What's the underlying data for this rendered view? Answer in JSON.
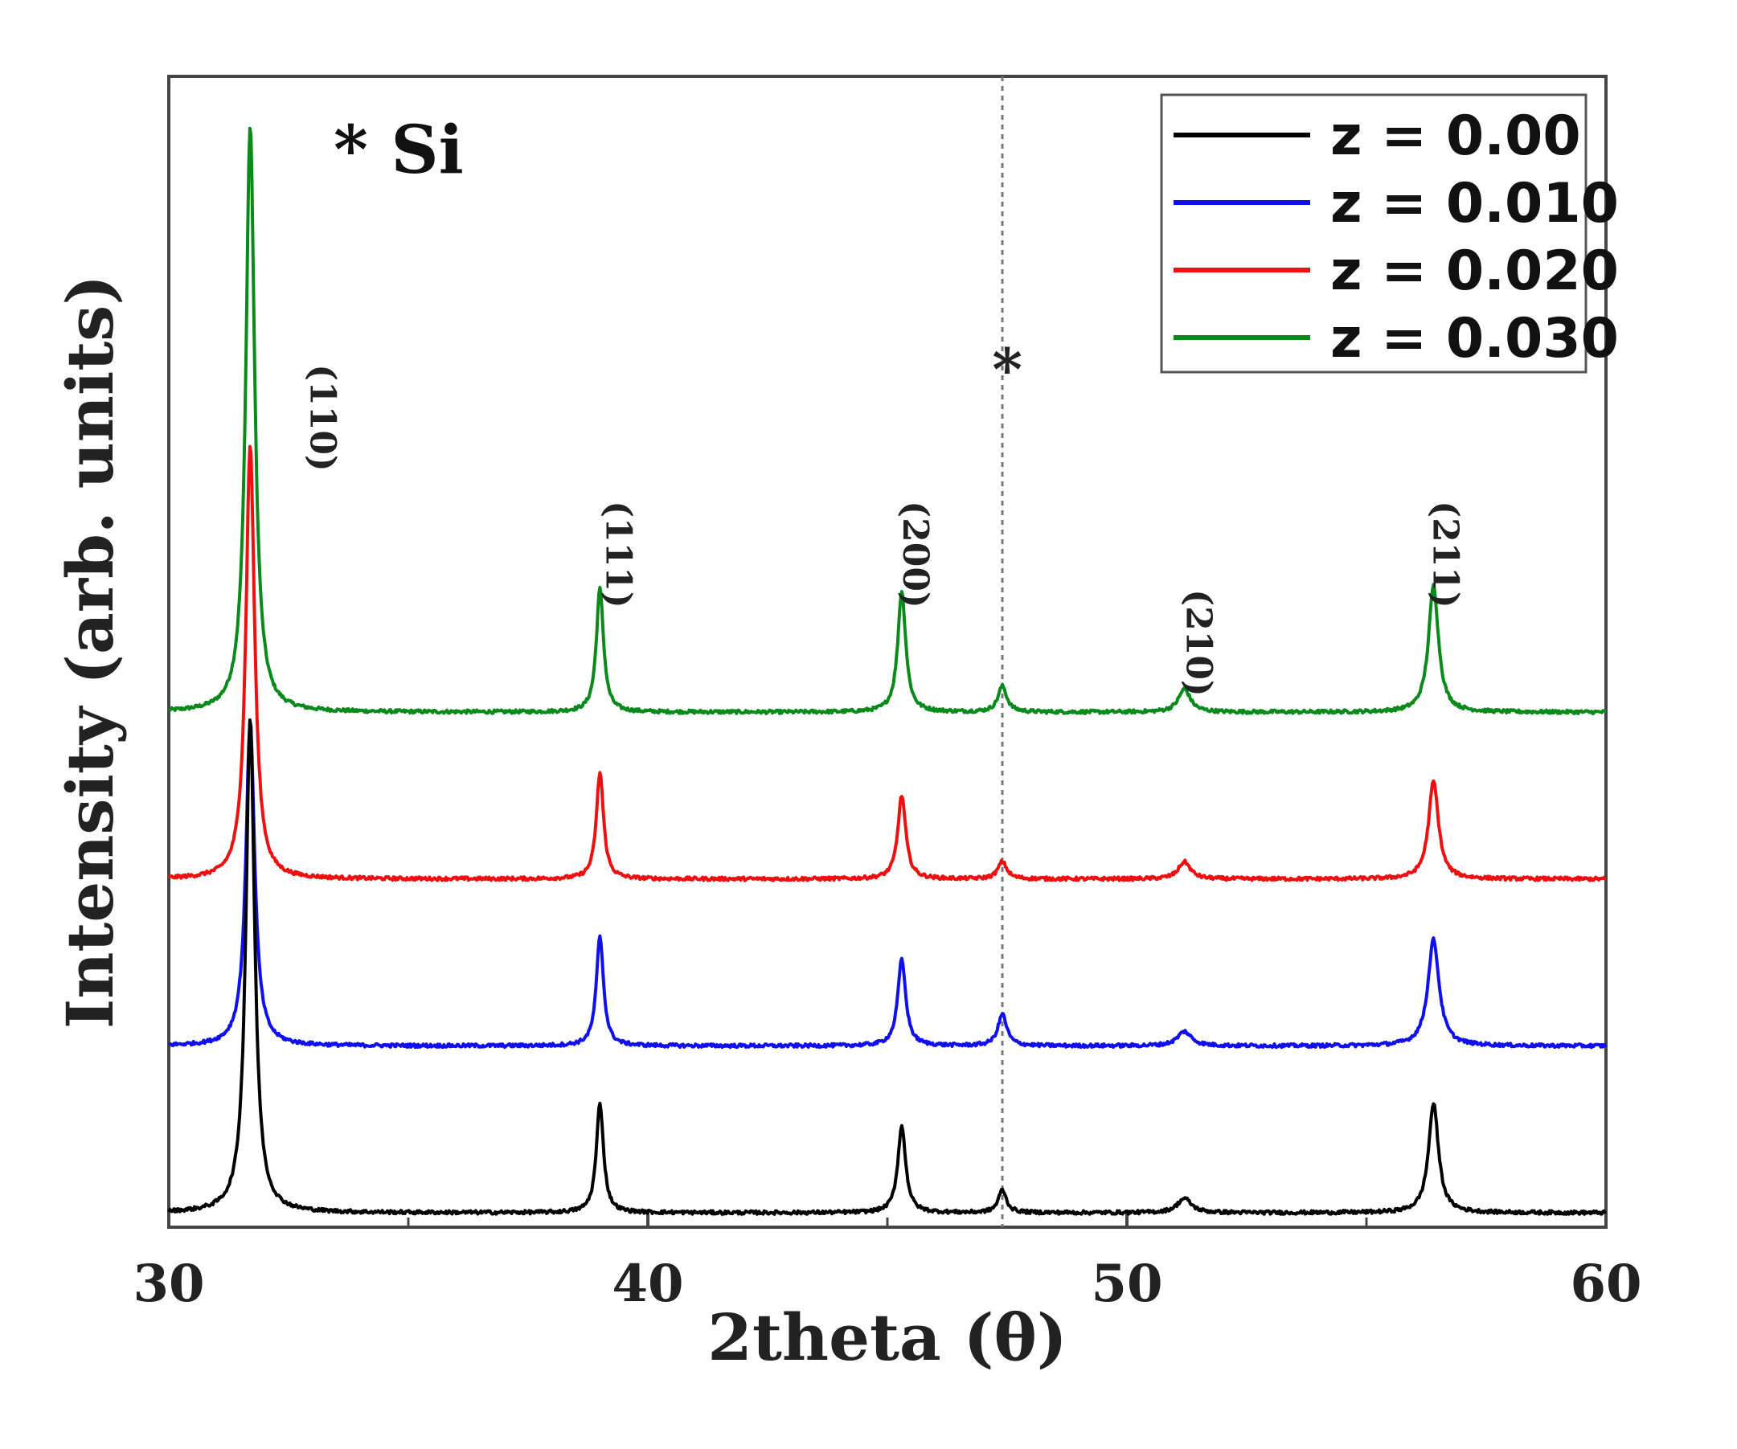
{
  "chart_data": {
    "type": "line",
    "title": "",
    "xlabel": "2theta (θ)",
    "ylabel": "Intensity (arb. units)",
    "xlim": [
      30,
      60
    ],
    "xticks": [
      "30",
      "40",
      "50",
      "60"
    ],
    "annotation": "* Si",
    "si_marker": {
      "label": "*",
      "x": 47.4
    },
    "peak_labels": [
      {
        "label": "(110)",
        "x": 31.7
      },
      {
        "label": "(111)",
        "x": 39.0
      },
      {
        "label": "(200)",
        "x": 45.3
      },
      {
        "label": "(210)",
        "x": 51.2
      },
      {
        "label": "(211)",
        "x": 56.4
      }
    ],
    "series": [
      {
        "name": "z = 0.00",
        "color": "#000000",
        "baseline": 0.0,
        "height_scale": 1.0,
        "peaks": [
          {
            "x": 31.7,
            "height": 1.72,
            "width": 0.22
          },
          {
            "x": 39.0,
            "height": 0.38,
            "width": 0.18
          },
          {
            "x": 45.3,
            "height": 0.3,
            "width": 0.2
          },
          {
            "x": 47.4,
            "height": 0.08,
            "width": 0.2
          },
          {
            "x": 51.2,
            "height": 0.05,
            "width": 0.35
          },
          {
            "x": 56.4,
            "height": 0.38,
            "width": 0.25
          }
        ]
      },
      {
        "name": "z = 0.010",
        "color": "#1010ee",
        "baseline": 0.58,
        "height_scale": 1.0,
        "peaks": [
          {
            "x": 31.7,
            "height": 1.13,
            "width": 0.22
          },
          {
            "x": 39.0,
            "height": 0.38,
            "width": 0.18
          },
          {
            "x": 45.3,
            "height": 0.3,
            "width": 0.2
          },
          {
            "x": 47.4,
            "height": 0.11,
            "width": 0.22
          },
          {
            "x": 51.2,
            "height": 0.05,
            "width": 0.35
          },
          {
            "x": 56.4,
            "height": 0.37,
            "width": 0.28
          }
        ]
      },
      {
        "name": "z = 0.020",
        "color": "#ee1010",
        "baseline": 1.16,
        "height_scale": 1.0,
        "peaks": [
          {
            "x": 31.7,
            "height": 1.51,
            "width": 0.22
          },
          {
            "x": 39.0,
            "height": 0.37,
            "width": 0.18
          },
          {
            "x": 45.3,
            "height": 0.29,
            "width": 0.2
          },
          {
            "x": 47.4,
            "height": 0.06,
            "width": 0.22
          },
          {
            "x": 51.2,
            "height": 0.06,
            "width": 0.3
          },
          {
            "x": 56.4,
            "height": 0.34,
            "width": 0.25
          }
        ]
      },
      {
        "name": "z = 0.030",
        "color": "#0a8a1a",
        "baseline": 1.74,
        "height_scale": 1.0,
        "peaks": [
          {
            "x": 31.7,
            "height": 2.04,
            "width": 0.22
          },
          {
            "x": 39.0,
            "height": 0.43,
            "width": 0.18
          },
          {
            "x": 45.3,
            "height": 0.42,
            "width": 0.2
          },
          {
            "x": 47.4,
            "height": 0.09,
            "width": 0.22
          },
          {
            "x": 51.2,
            "height": 0.08,
            "width": 0.3
          },
          {
            "x": 56.4,
            "height": 0.44,
            "width": 0.25
          }
        ]
      }
    ],
    "ylim": [
      -0.05,
      3.95
    ],
    "legend_position": "top-right",
    "grid": false
  }
}
